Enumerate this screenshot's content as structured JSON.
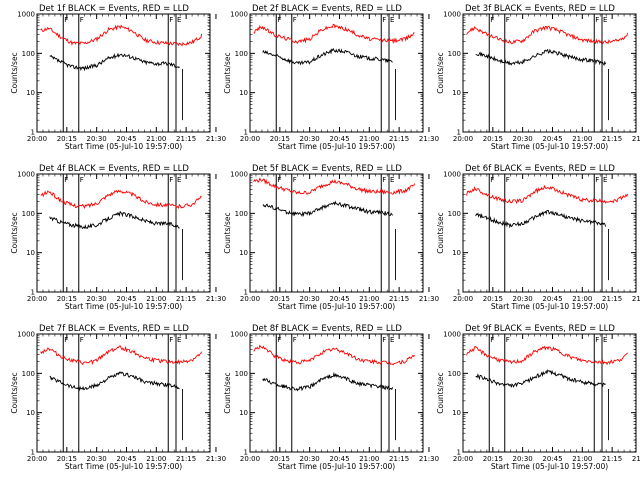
{
  "chart_data": {
    "type": "line",
    "layout": "3x3 grid",
    "y_scale": "log",
    "ylim": [
      1,
      1000
    ],
    "yticks": [
      "1",
      "10",
      "100",
      "1000"
    ],
    "xticks": [
      "20:00",
      "20:15",
      "20:30",
      "20:45",
      "21:00",
      "21:15",
      "21:30"
    ],
    "xlabel": "Start Time (05-Jul-10 19:57:00)",
    "ylabel": "Counts/sec",
    "colors": {
      "events": "#000000",
      "lld": "#ff0000",
      "markers": "#000000"
    },
    "panels": [
      {
        "title": "Det 1f BLACK = Events, RED = LLD",
        "markers": [
          {
            "t": 20.22,
            "label": "F"
          },
          {
            "t": 20.35,
            "label": "F"
          },
          {
            "t": 21.1,
            "label": "F"
          },
          {
            "t": 21.165,
            "label": "E"
          }
        ],
        "start": 20.1,
        "end": 21.22,
        "lld_shape": [
          0.55,
          0.45,
          0.25,
          0.55,
          0.35,
          0.5
        ],
        "lld_base": 400,
        "ev_base": 70,
        "curve_t": [
          20.02,
          20.1,
          20.2,
          20.3,
          20.4,
          20.5,
          20.6,
          20.7,
          20.8,
          20.9,
          21.0,
          21.1,
          21.2,
          21.3,
          21.38
        ],
        "lld": [
          370,
          430,
          260,
          180,
          180,
          230,
          400,
          480,
          370,
          220,
          190,
          180,
          170,
          190,
          280
        ],
        "events": [
          null,
          85,
          60,
          45,
          42,
          50,
          75,
          95,
          80,
          60,
          55,
          55,
          45,
          null,
          null
        ]
      },
      {
        "title": "Det 2f BLACK = Events, RED = LLD",
        "markers": [
          {
            "t": 20.22,
            "label": "F"
          },
          {
            "t": 20.35,
            "label": "F"
          },
          {
            "t": 21.1,
            "label": "F"
          },
          {
            "t": 21.165,
            "label": "E"
          }
        ],
        "start": 20.1,
        "end": 21.22,
        "curve_t": [
          20.02,
          20.1,
          20.2,
          20.3,
          20.4,
          20.5,
          20.6,
          20.7,
          20.8,
          20.9,
          21.0,
          21.1,
          21.2,
          21.3,
          21.38
        ],
        "lld": [
          330,
          480,
          300,
          240,
          200,
          230,
          400,
          500,
          420,
          300,
          230,
          220,
          210,
          230,
          330
        ],
        "events": [
          null,
          110,
          90,
          70,
          55,
          60,
          90,
          120,
          110,
          85,
          75,
          70,
          60,
          null,
          null
        ]
      },
      {
        "title": "Det 3f BLACK = Events, RED = LLD",
        "markers": [
          {
            "t": 20.22,
            "label": "F"
          },
          {
            "t": 20.35,
            "label": "F"
          },
          {
            "t": 21.1,
            "label": "F"
          },
          {
            "t": 21.165,
            "label": "E"
          }
        ],
        "start": 20.1,
        "end": 21.22,
        "curve_t": [
          20.02,
          20.1,
          20.2,
          20.3,
          20.4,
          20.5,
          20.6,
          20.7,
          20.8,
          20.9,
          21.0,
          21.1,
          21.2,
          21.3,
          21.38
        ],
        "lld": [
          320,
          450,
          300,
          230,
          190,
          210,
          370,
          470,
          380,
          280,
          220,
          200,
          190,
          210,
          300
        ],
        "events": [
          null,
          105,
          85,
          65,
          55,
          60,
          85,
          115,
          100,
          80,
          70,
          65,
          55,
          null,
          null
        ]
      },
      {
        "title": "Det 4f BLACK = Events, RED = LLD",
        "markers": [
          {
            "t": 20.22,
            "label": "F"
          },
          {
            "t": 20.35,
            "label": "F"
          },
          {
            "t": 21.1,
            "label": "F"
          },
          {
            "t": 21.165,
            "label": "E"
          }
        ],
        "start": 20.1,
        "end": 21.22,
        "curve_t": [
          20.02,
          20.1,
          20.2,
          20.3,
          20.4,
          20.5,
          20.6,
          20.7,
          20.8,
          20.9,
          21.0,
          21.1,
          21.2,
          21.3,
          21.38
        ],
        "lld": [
          270,
          360,
          210,
          160,
          150,
          180,
          300,
          380,
          300,
          200,
          170,
          160,
          150,
          170,
          260
        ],
        "events": [
          null,
          80,
          60,
          50,
          45,
          50,
          75,
          100,
          85,
          65,
          55,
          55,
          45,
          null,
          null
        ]
      },
      {
        "title": "Det 5f BLACK = Events, RED = LLD",
        "markers": [
          {
            "t": 20.22,
            "label": "F"
          },
          {
            "t": 20.35,
            "label": "F"
          },
          {
            "t": 21.1,
            "label": "F"
          },
          {
            "t": 21.165,
            "label": "E"
          }
        ],
        "start": 20.1,
        "end": 21.22,
        "curve_t": [
          20.02,
          20.1,
          20.2,
          20.3,
          20.4,
          20.5,
          20.6,
          20.7,
          20.8,
          20.9,
          21.0,
          21.1,
          21.2,
          21.3,
          21.38
        ],
        "lld": [
          650,
          720,
          500,
          400,
          330,
          340,
          500,
          650,
          560,
          420,
          360,
          350,
          340,
          380,
          520
        ],
        "events": [
          null,
          170,
          140,
          110,
          95,
          100,
          140,
          180,
          160,
          130,
          110,
          105,
          95,
          null,
          null
        ]
      },
      {
        "title": "Det 6f BLACK = Events, RED = LLD",
        "markers": [
          {
            "t": 20.22,
            "label": "F"
          },
          {
            "t": 20.35,
            "label": "F"
          },
          {
            "t": 21.1,
            "label": "F"
          },
          {
            "t": 21.165,
            "label": "E"
          }
        ],
        "start": 20.1,
        "end": 21.22,
        "curve_t": [
          20.02,
          20.1,
          20.2,
          20.3,
          20.4,
          20.5,
          20.6,
          20.7,
          20.8,
          20.9,
          21.0,
          21.1,
          21.2,
          21.3,
          21.38
        ],
        "lld": [
          300,
          430,
          300,
          230,
          200,
          210,
          360,
          470,
          380,
          280,
          220,
          210,
          200,
          220,
          310
        ],
        "events": [
          null,
          95,
          75,
          60,
          50,
          55,
          80,
          110,
          95,
          75,
          65,
          60,
          50,
          null,
          null
        ]
      },
      {
        "title": "Det 7f BLACK = Events, RED = LLD",
        "markers": [
          {
            "t": 20.22,
            "label": "F"
          },
          {
            "t": 20.35,
            "label": "F"
          },
          {
            "t": 21.1,
            "label": "F"
          },
          {
            "t": 21.165,
            "label": "E"
          }
        ],
        "start": 20.1,
        "end": 21.22,
        "curve_t": [
          20.02,
          20.1,
          20.2,
          20.3,
          20.4,
          20.5,
          20.6,
          20.7,
          20.8,
          20.9,
          21.0,
          21.1,
          21.2,
          21.3,
          21.38
        ],
        "lld": [
          330,
          430,
          270,
          210,
          180,
          210,
          370,
          460,
          360,
          250,
          210,
          200,
          190,
          220,
          320
        ],
        "events": [
          null,
          80,
          60,
          45,
          40,
          50,
          75,
          100,
          85,
          60,
          55,
          50,
          45,
          null,
          null
        ]
      },
      {
        "title": "Det 8f BLACK = Events, RED = LLD",
        "markers": [
          {
            "t": 20.22,
            "label": "F"
          },
          {
            "t": 20.35,
            "label": "F"
          },
          {
            "t": 21.1,
            "label": "F"
          },
          {
            "t": 21.165,
            "label": "E"
          }
        ],
        "start": 20.1,
        "end": 21.22,
        "curve_t": [
          20.02,
          20.1,
          20.2,
          20.3,
          20.4,
          20.5,
          20.6,
          20.7,
          20.8,
          20.9,
          21.0,
          21.1,
          21.2,
          21.3,
          21.38
        ],
        "lld": [
          360,
          500,
          280,
          210,
          190,
          210,
          340,
          420,
          340,
          230,
          200,
          190,
          180,
          200,
          290
        ],
        "events": [
          null,
          75,
          55,
          45,
          40,
          45,
          70,
          90,
          75,
          55,
          50,
          45,
          40,
          null,
          null
        ]
      },
      {
        "title": "Det 9f BLACK = Events, RED = LLD",
        "markers": [
          {
            "t": 20.22,
            "label": "F"
          },
          {
            "t": 20.35,
            "label": "F"
          },
          {
            "t": 21.1,
            "label": "F"
          },
          {
            "t": 21.165,
            "label": "E"
          }
        ],
        "start": 20.1,
        "end": 21.22,
        "curve_t": [
          20.02,
          20.1,
          20.2,
          20.3,
          20.4,
          20.5,
          20.6,
          20.7,
          20.8,
          20.9,
          21.0,
          21.1,
          21.2,
          21.3,
          21.38
        ],
        "lld": [
          300,
          440,
          290,
          220,
          190,
          210,
          360,
          460,
          370,
          260,
          210,
          200,
          190,
          210,
          300
        ],
        "events": [
          null,
          90,
          70,
          55,
          48,
          55,
          80,
          110,
          95,
          70,
          60,
          55,
          50,
          null,
          null
        ]
      }
    ]
  }
}
